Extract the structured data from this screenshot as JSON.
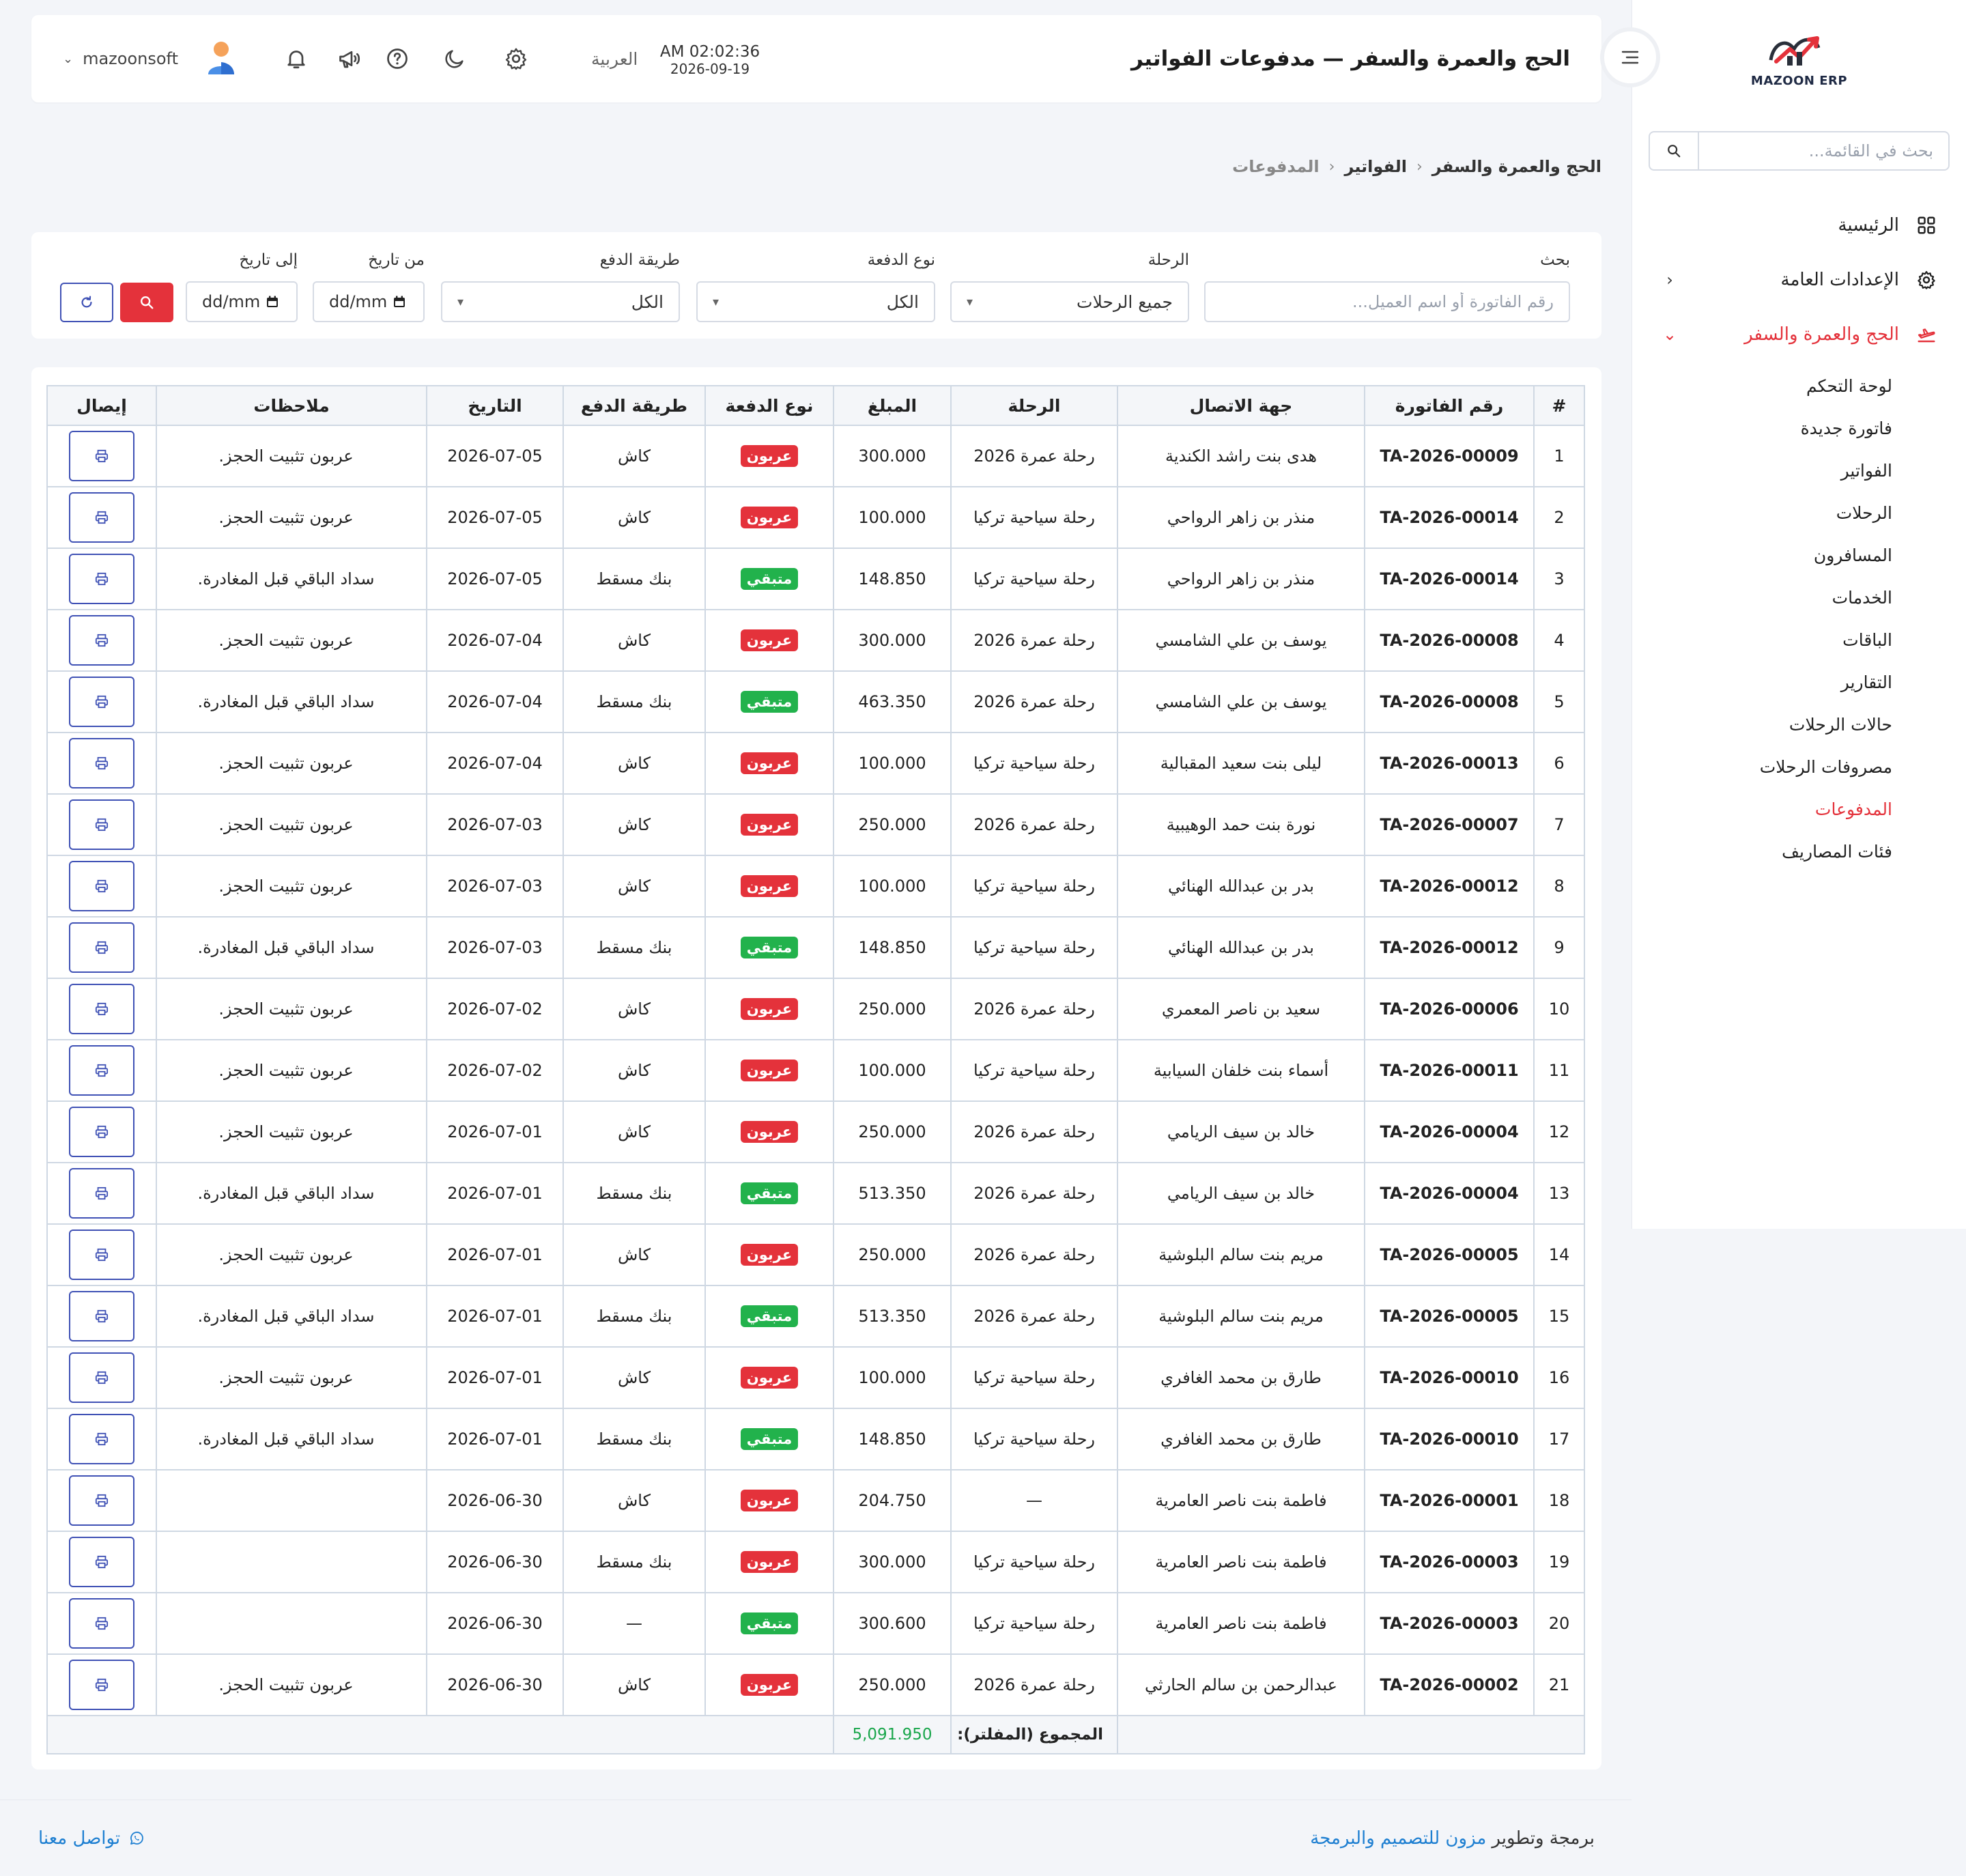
{
  "app": {
    "brand": "MAZOON ERP",
    "logo_tag": "ERP • ERP",
    "page_title": "الحج والعمرة والسفر — مدفوعات الفواتير",
    "clock_time": "AM 02:02:36",
    "clock_date": "2026-09-19",
    "language": "العربية",
    "username": "mazoonsoft"
  },
  "sidebar": {
    "search_placeholder": "بحث في القائمة...",
    "items": [
      {
        "label": "الرئيسية",
        "icon": "grid-icon"
      },
      {
        "label": "الإعدادات العامة",
        "icon": "gear-icon"
      },
      {
        "label": "الحج والعمرة والسفر",
        "icon": "plane-icon"
      }
    ],
    "subitems": [
      "لوحة التحكم",
      "فاتورة جديدة",
      "الفواتير",
      "الرحلات",
      "المسافرون",
      "الخدمات",
      "الباقات",
      "التقارير",
      "حالات الرحلات",
      "مصروفات الرحلات",
      "المدفوعات",
      "فئات المصاريف"
    ],
    "active_subitem": "المدفوعات"
  },
  "breadcrumb": {
    "items": [
      "الحج والعمرة والسفر",
      "الفواتير",
      "المدفوعات"
    ]
  },
  "filters": {
    "search_label": "بحث",
    "search_placeholder": "رقم الفاتورة أو اسم العميل...",
    "trip_label": "الرحلة",
    "trip_value": "جميع الرحلات",
    "payment_type_label": "نوع الدفعة",
    "payment_type_value": "الكل",
    "payment_method_label": "طريقة الدفع",
    "payment_method_value": "الكل",
    "from_date_label": "من تاريخ",
    "to_date_label": "إلى تاريخ",
    "date_placeholder": "dd/mm"
  },
  "table": {
    "headers": [
      "#",
      "رقم الفاتورة",
      "جهة الاتصال",
      "الرحلة",
      "المبلغ",
      "نوع الدفعة",
      "طريقة الدفع",
      "التاريخ",
      "ملاحظات",
      "إيصال"
    ],
    "rows": [
      {
        "n": "1",
        "inv": "TA-2026-00009",
        "contact": "هدى بنت راشد الكندية",
        "trip": "رحلة عمرة 2026",
        "amount": "300.000",
        "type": "عربون",
        "kind": "dep",
        "method": "كاش",
        "date": "2026-07-05",
        "note": "عربون تثبيت الحجز."
      },
      {
        "n": "2",
        "inv": "TA-2026-00014",
        "contact": "منذر بن زاهر الرواحي",
        "trip": "رحلة سياحية تركيا",
        "amount": "100.000",
        "type": "عربون",
        "kind": "dep",
        "method": "كاش",
        "date": "2026-07-05",
        "note": "عربون تثبيت الحجز."
      },
      {
        "n": "3",
        "inv": "TA-2026-00014",
        "contact": "منذر بن زاهر الرواحي",
        "trip": "رحلة سياحية تركيا",
        "amount": "148.850",
        "type": "متبقي",
        "kind": "rem",
        "method": "بنك مسقط",
        "date": "2026-07-05",
        "note": "سداد الباقي قبل المغادرة."
      },
      {
        "n": "4",
        "inv": "TA-2026-00008",
        "contact": "يوسف بن علي الشامسي",
        "trip": "رحلة عمرة 2026",
        "amount": "300.000",
        "type": "عربون",
        "kind": "dep",
        "method": "كاش",
        "date": "2026-07-04",
        "note": "عربون تثبيت الحجز."
      },
      {
        "n": "5",
        "inv": "TA-2026-00008",
        "contact": "يوسف بن علي الشامسي",
        "trip": "رحلة عمرة 2026",
        "amount": "463.350",
        "type": "متبقي",
        "kind": "rem",
        "method": "بنك مسقط",
        "date": "2026-07-04",
        "note": "سداد الباقي قبل المغادرة."
      },
      {
        "n": "6",
        "inv": "TA-2026-00013",
        "contact": "ليلى بنت سعيد المقبالية",
        "trip": "رحلة سياحية تركيا",
        "amount": "100.000",
        "type": "عربون",
        "kind": "dep",
        "method": "كاش",
        "date": "2026-07-04",
        "note": "عربون تثبيت الحجز."
      },
      {
        "n": "7",
        "inv": "TA-2026-00007",
        "contact": "نورة بنت حمد الوهيبية",
        "trip": "رحلة عمرة 2026",
        "amount": "250.000",
        "type": "عربون",
        "kind": "dep",
        "method": "كاش",
        "date": "2026-07-03",
        "note": "عربون تثبيت الحجز."
      },
      {
        "n": "8",
        "inv": "TA-2026-00012",
        "contact": "بدر بن عبدالله الهنائي",
        "trip": "رحلة سياحية تركيا",
        "amount": "100.000",
        "type": "عربون",
        "kind": "dep",
        "method": "كاش",
        "date": "2026-07-03",
        "note": "عربون تثبيت الحجز."
      },
      {
        "n": "9",
        "inv": "TA-2026-00012",
        "contact": "بدر بن عبدالله الهنائي",
        "trip": "رحلة سياحية تركيا",
        "amount": "148.850",
        "type": "متبقي",
        "kind": "rem",
        "method": "بنك مسقط",
        "date": "2026-07-03",
        "note": "سداد الباقي قبل المغادرة."
      },
      {
        "n": "10",
        "inv": "TA-2026-00006",
        "contact": "سعيد بن ناصر المعمري",
        "trip": "رحلة عمرة 2026",
        "amount": "250.000",
        "type": "عربون",
        "kind": "dep",
        "method": "كاش",
        "date": "2026-07-02",
        "note": "عربون تثبيت الحجز."
      },
      {
        "n": "11",
        "inv": "TA-2026-00011",
        "contact": "أسماء بنت خلفان السيابية",
        "trip": "رحلة سياحية تركيا",
        "amount": "100.000",
        "type": "عربون",
        "kind": "dep",
        "method": "كاش",
        "date": "2026-07-02",
        "note": "عربون تثبيت الحجز."
      },
      {
        "n": "12",
        "inv": "TA-2026-00004",
        "contact": "خالد بن سيف الريامي",
        "trip": "رحلة عمرة 2026",
        "amount": "250.000",
        "type": "عربون",
        "kind": "dep",
        "method": "كاش",
        "date": "2026-07-01",
        "note": "عربون تثبيت الحجز."
      },
      {
        "n": "13",
        "inv": "TA-2026-00004",
        "contact": "خالد بن سيف الريامي",
        "trip": "رحلة عمرة 2026",
        "amount": "513.350",
        "type": "متبقي",
        "kind": "rem",
        "method": "بنك مسقط",
        "date": "2026-07-01",
        "note": "سداد الباقي قبل المغادرة."
      },
      {
        "n": "14",
        "inv": "TA-2026-00005",
        "contact": "مريم بنت سالم البلوشية",
        "trip": "رحلة عمرة 2026",
        "amount": "250.000",
        "type": "عربون",
        "kind": "dep",
        "method": "كاش",
        "date": "2026-07-01",
        "note": "عربون تثبيت الحجز."
      },
      {
        "n": "15",
        "inv": "TA-2026-00005",
        "contact": "مريم بنت سالم البلوشية",
        "trip": "رحلة عمرة 2026",
        "amount": "513.350",
        "type": "متبقي",
        "kind": "rem",
        "method": "بنك مسقط",
        "date": "2026-07-01",
        "note": "سداد الباقي قبل المغادرة."
      },
      {
        "n": "16",
        "inv": "TA-2026-00010",
        "contact": "طارق بن محمد الغافري",
        "trip": "رحلة سياحية تركيا",
        "amount": "100.000",
        "type": "عربون",
        "kind": "dep",
        "method": "كاش",
        "date": "2026-07-01",
        "note": "عربون تثبيت الحجز."
      },
      {
        "n": "17",
        "inv": "TA-2026-00010",
        "contact": "طارق بن محمد الغافري",
        "trip": "رحلة سياحية تركيا",
        "amount": "148.850",
        "type": "متبقي",
        "kind": "rem",
        "method": "بنك مسقط",
        "date": "2026-07-01",
        "note": "سداد الباقي قبل المغادرة."
      },
      {
        "n": "18",
        "inv": "TA-2026-00001",
        "contact": "فاطمة بنت ناصر العامرية",
        "trip": "—",
        "amount": "204.750",
        "type": "عربون",
        "kind": "dep",
        "method": "كاش",
        "date": "2026-06-30",
        "note": ""
      },
      {
        "n": "19",
        "inv": "TA-2026-00003",
        "contact": "فاطمة بنت ناصر العامرية",
        "trip": "رحلة سياحية تركيا",
        "amount": "300.000",
        "type": "عربون",
        "kind": "dep",
        "method": "بنك مسقط",
        "date": "2026-06-30",
        "note": ""
      },
      {
        "n": "20",
        "inv": "TA-2026-00003",
        "contact": "فاطمة بنت ناصر العامرية",
        "trip": "رحلة سياحية تركيا",
        "amount": "300.600",
        "type": "متبقي",
        "kind": "rem",
        "method": "—",
        "date": "2026-06-30",
        "note": ""
      },
      {
        "n": "21",
        "inv": "TA-2026-00002",
        "contact": "عبدالرحمن بن سالم الحارثي",
        "trip": "رحلة عمرة 2026",
        "amount": "250.000",
        "type": "عربون",
        "kind": "dep",
        "method": "كاش",
        "date": "2026-06-30",
        "note": "عربون تثبيت الحجز."
      }
    ],
    "total_label": "المجموع (المفلتر):",
    "total_amount": "5,091.950"
  },
  "footer": {
    "credit_prefix": "برمجة وتطوير",
    "credit_brand": "مزون للتصميم والبرمجة",
    "contact_label": "تواصل معنا"
  },
  "colors": {
    "accent": "#e4323b",
    "link": "#1e7fd1",
    "amount": "#19a64b",
    "outline_button": "#3f51b5"
  }
}
